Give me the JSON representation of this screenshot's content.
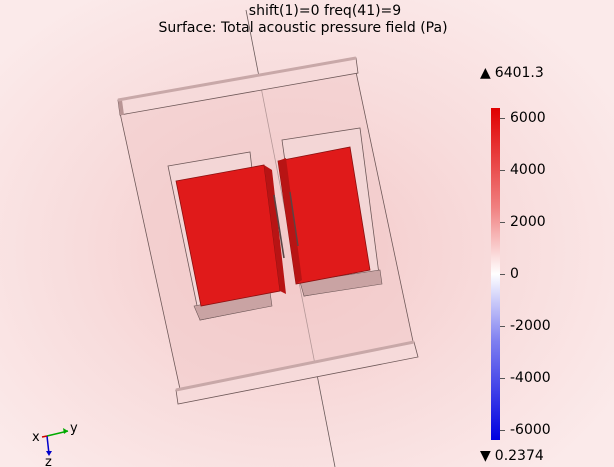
{
  "plot": {
    "title_line1": "shift(1)=0 freq(41)=9",
    "title_line2": "Surface: Total acoustic pressure field (Pa)"
  },
  "colorbar": {
    "max_label": "6401.3",
    "min_label": "0.2374",
    "ticks": [
      "6000",
      "4000",
      "2000",
      "0",
      "-2000",
      "-4000",
      "-6000"
    ],
    "top_color": "#e00000",
    "mid_color": "#ffffff",
    "bottom_color": "#0000e0"
  },
  "axes": {
    "x": "x",
    "y": "y",
    "z": "z"
  },
  "colors": {
    "block_red": "#e01a1a",
    "frame_pink": "#efc6c6",
    "axis_x": "#cc0000",
    "axis_y": "#00aa00",
    "axis_z": "#0000cc"
  }
}
